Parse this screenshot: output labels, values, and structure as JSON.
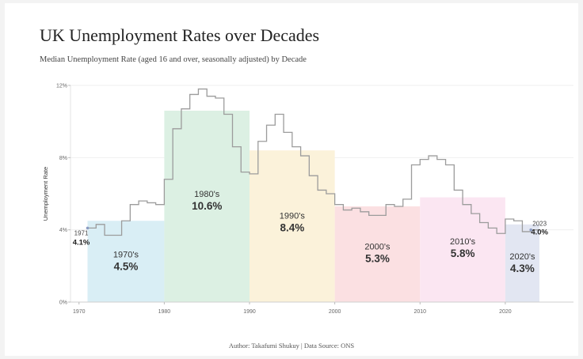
{
  "header": {
    "title": "UK Unemployment Rates over Decades",
    "subtitle": "Median Unemployment Rate (aged 16 and over, seasonally adjusted) by Decade"
  },
  "footer": {
    "credit": "Author: Takafumi Shukuy | Data Source: ONS"
  },
  "chart_data": {
    "type": "area",
    "title": "UK Unemployment Rates over Decades",
    "subtitle": "Median Unemployment Rate (aged 16 and over, seasonally adjusted) by Decade",
    "xlabel": "",
    "ylabel": "Unemployment Rate",
    "xlim": [
      1969,
      2028
    ],
    "ylim": [
      0,
      12
    ],
    "x_ticks": [
      1970,
      1980,
      1990,
      2000,
      2010,
      2020
    ],
    "x_tick_labels": [
      "1970",
      "1980",
      "1990",
      "2000",
      "2010",
      "2020"
    ],
    "y_ticks": [
      0,
      4,
      8,
      12
    ],
    "y_tick_labels": [
      "0%",
      "4%",
      "8%",
      "12%"
    ],
    "decades": [
      {
        "name": "1970's",
        "start": 1971,
        "end": 1980,
        "median": 4.5,
        "label": "4.5%",
        "color": "#d9eef5"
      },
      {
        "name": "1980's",
        "start": 1980,
        "end": 1990,
        "median": 10.6,
        "label": "10.6%",
        "color": "#dcf0e3"
      },
      {
        "name": "1990's",
        "start": 1990,
        "end": 2000,
        "median": 8.4,
        "label": "8.4%",
        "color": "#fbf2da"
      },
      {
        "name": "2000's",
        "start": 2000,
        "end": 2010,
        "median": 5.3,
        "label": "5.3%",
        "color": "#fbe0e2"
      },
      {
        "name": "2010's",
        "start": 2010,
        "end": 2020,
        "median": 5.8,
        "label": "5.8%",
        "color": "#fbe6f2"
      },
      {
        "name": "2020's",
        "start": 2020,
        "end": 2024,
        "median": 4.3,
        "label": "4.3%",
        "color": "#e2e6f2"
      }
    ],
    "annual_series": {
      "name": "Annual unemployment rate",
      "color": "#9c9c9c",
      "x": [
        1971,
        1972,
        1973,
        1974,
        1975,
        1976,
        1977,
        1978,
        1979,
        1980,
        1981,
        1982,
        1983,
        1984,
        1985,
        1986,
        1987,
        1988,
        1989,
        1990,
        1991,
        1992,
        1993,
        1994,
        1995,
        1996,
        1997,
        1998,
        1999,
        2000,
        2001,
        2002,
        2003,
        2004,
        2005,
        2006,
        2007,
        2008,
        2009,
        2010,
        2011,
        2012,
        2013,
        2014,
        2015,
        2016,
        2017,
        2018,
        2019,
        2020,
        2021,
        2022,
        2023
      ],
      "y": [
        4.1,
        4.3,
        3.7,
        3.7,
        4.5,
        5.4,
        5.6,
        5.5,
        5.4,
        6.8,
        9.6,
        10.7,
        11.5,
        11.8,
        11.4,
        11.3,
        10.4,
        8.6,
        7.2,
        7.1,
        8.9,
        9.8,
        10.4,
        9.4,
        8.6,
        8.1,
        7.0,
        6.2,
        6.0,
        5.4,
        5.1,
        5.2,
        5.0,
        4.8,
        4.8,
        5.4,
        5.3,
        5.7,
        7.6,
        7.9,
        8.1,
        7.9,
        7.6,
        6.2,
        5.4,
        4.9,
        4.4,
        4.1,
        3.8,
        4.6,
        4.5,
        3.9,
        4.0
      ]
    },
    "endpoints": [
      {
        "year_label": "1971",
        "value_label": "4.1%",
        "year": 1971,
        "value": 4.1
      },
      {
        "year_label": "2023",
        "value_label": "4.0%",
        "year": 2023,
        "value": 4.0
      }
    ]
  }
}
